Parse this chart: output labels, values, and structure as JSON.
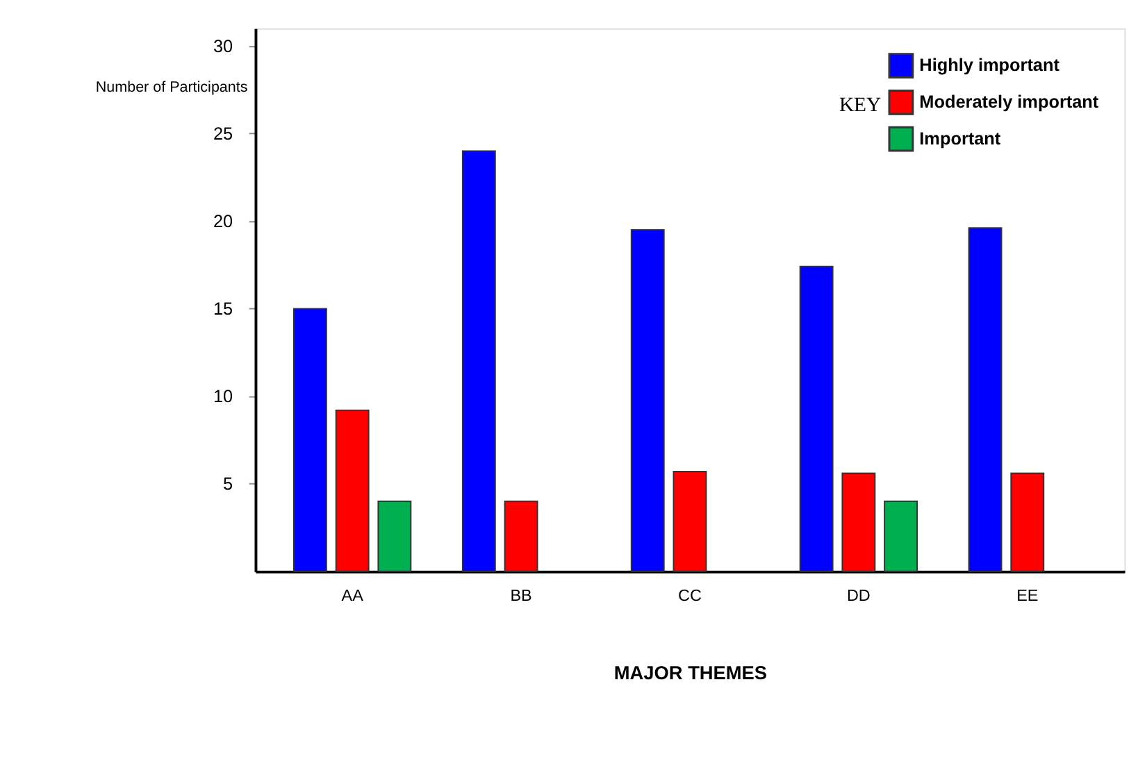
{
  "chart_data": {
    "type": "bar",
    "categories": [
      "AA",
      "BB",
      "CC",
      "DD",
      "EE"
    ],
    "series": [
      {
        "name": "Highly important",
        "color": "#0000ff",
        "values": [
          15,
          24,
          19.5,
          17.4,
          19.6
        ]
      },
      {
        "name": "Moderately important",
        "color": "#ff0000",
        "values": [
          9.2,
          4,
          5.7,
          5.6,
          5.6
        ]
      },
      {
        "name": "Important",
        "color": "#00b050",
        "values": [
          4,
          null,
          null,
          4,
          null
        ]
      }
    ],
    "xlabel": "MAJOR THEMES",
    "ylabel": "Number of Participants",
    "legend_title": "KEY",
    "ylim": [
      0,
      31
    ],
    "yticks": [
      5,
      10,
      15,
      20,
      25,
      30
    ],
    "grid": false,
    "legend": "top right"
  }
}
